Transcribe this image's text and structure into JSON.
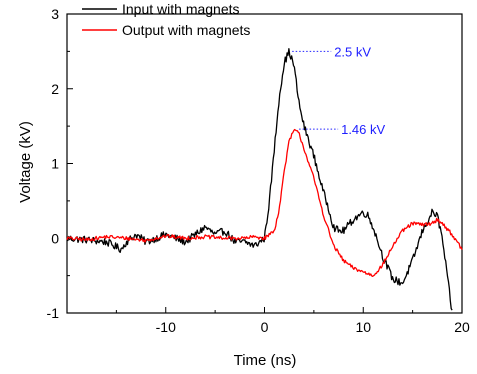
{
  "chart_data": {
    "type": "line",
    "xlabel": "Time (ns)",
    "ylabel": "Voltage (kV)",
    "xlim": [
      -20,
      20
    ],
    "ylim": [
      -1,
      3
    ],
    "xticks": [
      -10,
      0,
      10,
      20
    ],
    "yticks": [
      -1,
      0,
      1,
      2,
      3
    ],
    "x_tick_labels": [
      "-10",
      "0",
      "10",
      "20"
    ],
    "y_tick_labels": [
      "-1",
      "0",
      "1",
      "2",
      "3"
    ],
    "grid": false,
    "legend_position": "top-left",
    "series": [
      {
        "name": "Input with magnets",
        "color": "#000000",
        "noise_amplitude": 0.05,
        "x": [
          -20,
          -18,
          -16,
          -14.5,
          -14,
          -13,
          -12,
          -10,
          -8,
          -6,
          -5,
          -4,
          -3,
          -2,
          -1,
          0,
          0.5,
          1,
          1.5,
          2,
          2.5,
          3,
          3.5,
          4,
          5,
          6,
          6.5,
          7,
          7.5,
          8,
          9,
          10,
          10.5,
          11,
          12,
          13,
          14,
          15,
          16,
          17,
          17.5,
          18,
          18.5,
          19
        ],
        "y": [
          0,
          -0.02,
          -0.05,
          -0.15,
          -0.05,
          0.05,
          -0.05,
          0.05,
          -0.05,
          0.15,
          0.05,
          0.1,
          -0.05,
          -0.05,
          -0.1,
          0,
          0.5,
          1.2,
          1.9,
          2.35,
          2.5,
          2.3,
          1.8,
          1.5,
          1.1,
          0.6,
          0.4,
          0.15,
          0.1,
          0.1,
          0.25,
          0.35,
          0.3,
          0.15,
          -0.25,
          -0.55,
          -0.6,
          -0.3,
          0.1,
          0.35,
          0.3,
          0.0,
          -0.5,
          -1.0
        ]
      },
      {
        "name": "Output with magnets",
        "color": "#ff0000",
        "noise_amplitude": 0.025,
        "x": [
          -20,
          -18,
          -16,
          -14,
          -12,
          -10,
          -8,
          -6,
          -4,
          -2,
          -1,
          0,
          1,
          1.5,
          2,
          2.5,
          3,
          3.5,
          4,
          4.5,
          5,
          6,
          7,
          8,
          9,
          10,
          11,
          12,
          13,
          14,
          15,
          16,
          17,
          17.5,
          18,
          19,
          20
        ],
        "y": [
          0,
          -0.02,
          0.02,
          0.0,
          -0.03,
          0.03,
          0.0,
          0.02,
          0.0,
          0.0,
          0.02,
          0.0,
          0.1,
          0.4,
          0.9,
          1.3,
          1.45,
          1.4,
          1.2,
          1.0,
          0.8,
          0.3,
          -0.1,
          -0.3,
          -0.4,
          -0.45,
          -0.5,
          -0.35,
          -0.1,
          0.1,
          0.2,
          0.18,
          0.2,
          0.25,
          0.2,
          0.05,
          -0.15
        ]
      }
    ],
    "annotations": [
      {
        "text": "2.5 kV",
        "x": 2.5,
        "y": 2.5,
        "color": "#2020ff"
      },
      {
        "text": "1.46 kV",
        "x": 3.2,
        "y": 1.46,
        "color": "#2020ff"
      }
    ]
  }
}
